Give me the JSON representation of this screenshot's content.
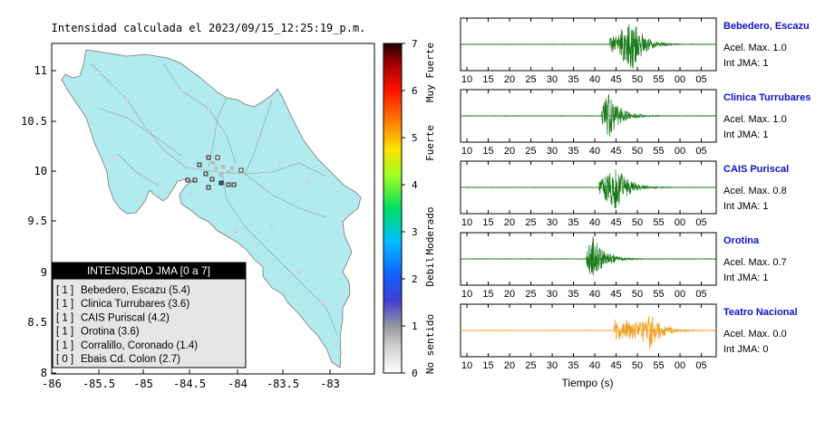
{
  "map": {
    "title": "Intensidad calculada el 2023/09/15_12:25:19_p.m.",
    "x_ticks": [
      "-86",
      "-85.5",
      "-85",
      "-84.5",
      "-84",
      "-83.5",
      "-83"
    ],
    "y_ticks": [
      "11",
      "10.5",
      "10",
      "9.5",
      "9",
      "8.5",
      "8"
    ],
    "legend": {
      "title": "INTENSIDAD JMA [0 a 7]",
      "rows": [
        {
          "code": "[ 1 ]",
          "name": "Bebedero, Escazu (5.4)"
        },
        {
          "code": "[ 1 ]",
          "name": "Clinica Turrubares (3.6)"
        },
        {
          "code": "[ 1 ]",
          "name": "CAIS Puriscal (4.2)"
        },
        {
          "code": "[ 1 ]",
          "name": "Orotina (3.6)"
        },
        {
          "code": "[ 1 ]",
          "name": "Corralillo, Coronado (1.4)"
        },
        {
          "code": "[ 0 ]",
          "name": "Ebais Cd. Colon (2.7)"
        }
      ]
    }
  },
  "colorbar": {
    "ticks": [
      "7",
      "6",
      "5",
      "4",
      "3",
      "2",
      "1",
      "0"
    ],
    "labels": [
      "Muy Fuerte",
      "Fuerte",
      "Moderado",
      "Debil",
      "No sentido"
    ]
  },
  "seismo": {
    "xlabel": "Tiempo (s)",
    "tick_labels": [
      "10",
      "15",
      "20",
      "25",
      "30",
      "35",
      "40",
      "45",
      "50",
      "55",
      "00",
      "05"
    ],
    "traces": [
      {
        "station": "Bebedero, Escazu",
        "acel": "Acel. Max. 1.0",
        "intj": "Int JMA: 1",
        "color": "#1a7a1a",
        "onset": 43.5,
        "peak": 49,
        "amp": 1.0
      },
      {
        "station": "Clinica Turrubares",
        "acel": "Acel. Max. 1.0",
        "intj": "Int JMA: 1",
        "color": "#1a7a1a",
        "onset": 41.5,
        "peak": 43,
        "amp": 1.0
      },
      {
        "station": "CAIS Puriscal",
        "acel": "Acel. Max. 0.8",
        "intj": "Int JMA: 1",
        "color": "#1a7a1a",
        "onset": 41,
        "peak": 45,
        "amp": 0.95
      },
      {
        "station": "Orotina",
        "acel": "Acel. Max. 0.7",
        "intj": "Int JMA: 1",
        "color": "#1a7a1a",
        "onset": 38,
        "peak": 39.5,
        "amp": 0.95
      },
      {
        "station": "Teatro Nacional",
        "acel": "Acel. Max. 0.0",
        "intj": "Int JMA: 0",
        "color": "#f0a020",
        "onset": 44.5,
        "peak": 52.5,
        "amp": 0.9
      }
    ]
  }
}
